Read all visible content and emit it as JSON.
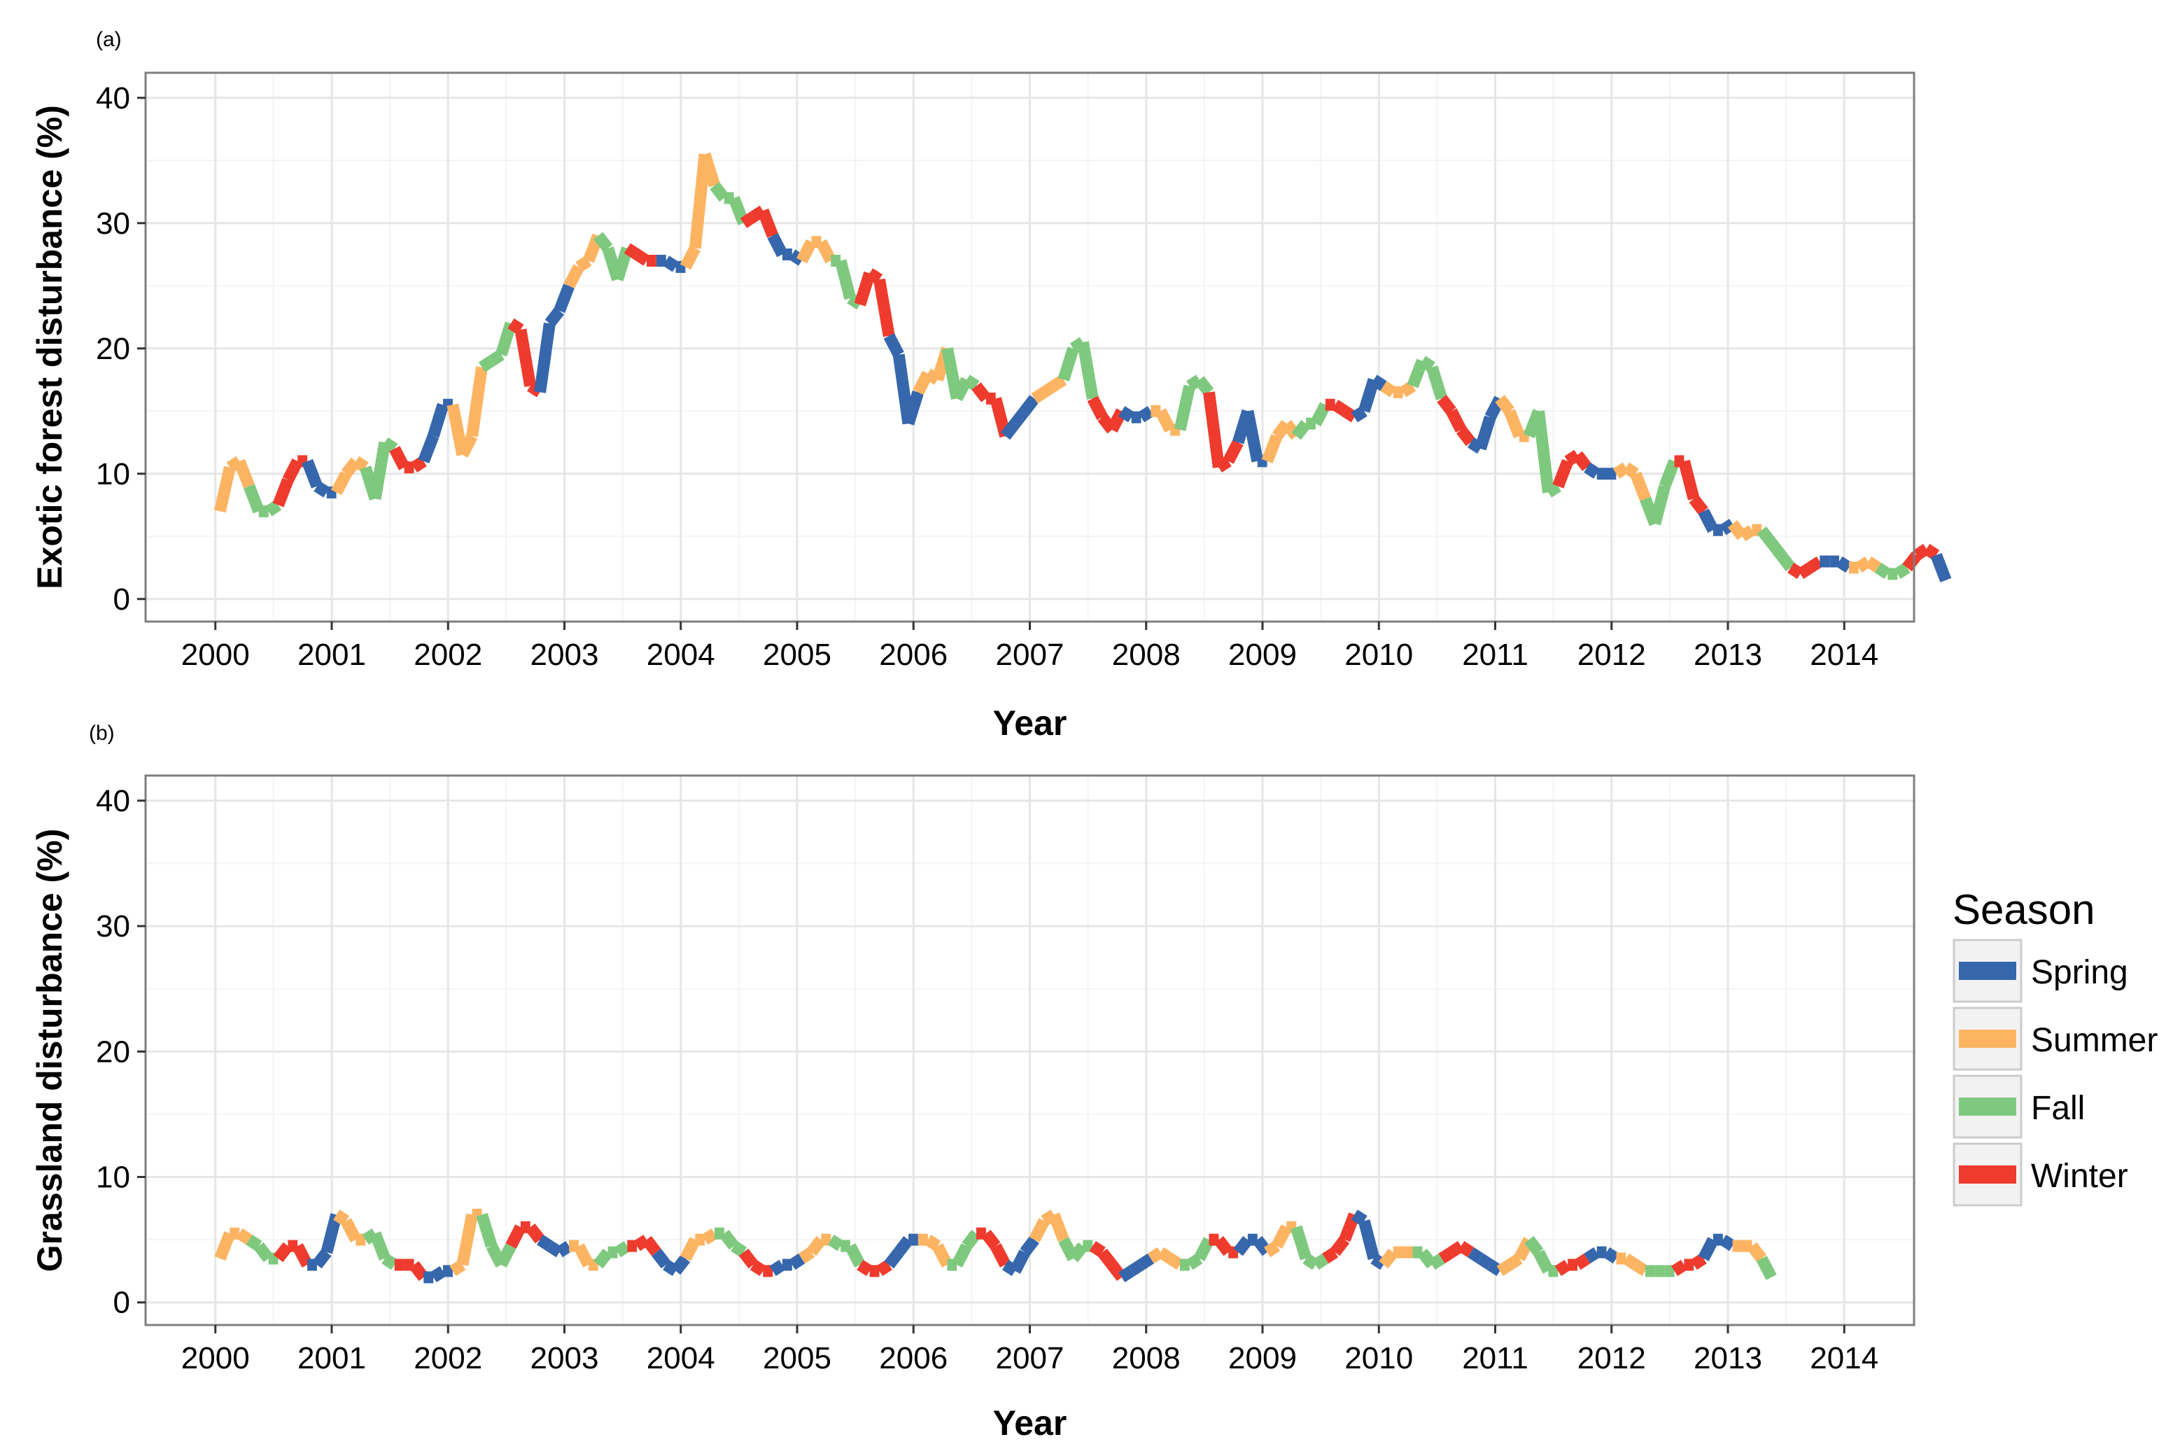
{
  "figure": {
    "legend": {
      "title": "Season",
      "position": "right",
      "entries": [
        {
          "label": "Spring",
          "color": "#3667ac"
        },
        {
          "label": "Summer",
          "color": "#fdb462"
        },
        {
          "label": "Fall",
          "color": "#7fc97f"
        },
        {
          "label": "Winter",
          "color": "#ee3b2e"
        }
      ]
    }
  },
  "chart_data": [
    {
      "panel_label": "(a)",
      "type": "line",
      "xlabel": "Year",
      "ylabel": "Exotic forest disturbance (%)",
      "xlim": [
        1999.4,
        2014.6
      ],
      "ylim": [
        -1.8,
        42
      ],
      "xticks": [
        2000,
        2001,
        2002,
        2003,
        2004,
        2005,
        2006,
        2007,
        2008,
        2009,
        2010,
        2011,
        2012,
        2013,
        2014
      ],
      "yticks": [
        0,
        10,
        20,
        30,
        40
      ],
      "grid": true,
      "season_order": [
        "Summer",
        "Fall",
        "Winter",
        "Spring"
      ],
      "x_start": 2000.04,
      "x_step": 0.0833333,
      "values": [
        7,
        10.5,
        11,
        9,
        7,
        7,
        7.5,
        9.5,
        11,
        11,
        9,
        8.5,
        8.5,
        10,
        11,
        10.5,
        8,
        12.5,
        12,
        10.5,
        10.5,
        11,
        13,
        15.5,
        15.5,
        11.5,
        13,
        18.5,
        19,
        19.5,
        22,
        21.5,
        17,
        16.5,
        22,
        23,
        25,
        26.5,
        27,
        29,
        28,
        25.5,
        28,
        27.5,
        27,
        27,
        27,
        26.5,
        26.5,
        28,
        35.5,
        33,
        32,
        32,
        30,
        30.5,
        31,
        29,
        27.5,
        27.5,
        27,
        28.5,
        28.5,
        27,
        27,
        24,
        23.5,
        26,
        25.5,
        21,
        19.5,
        14,
        16.5,
        18,
        17.5,
        20,
        16,
        17.5,
        17,
        16,
        16,
        13,
        14,
        15,
        16,
        16.5,
        17,
        17.5,
        20,
        20.5,
        16,
        14.5,
        13.5,
        15,
        14.5,
        14.5,
        15,
        15,
        13.5,
        13.5,
        17,
        17.5,
        16.5,
        10.5,
        11,
        12.5,
        15,
        11,
        11,
        13,
        14,
        13,
        14,
        14,
        15.5,
        15.5,
        15,
        14.5,
        15,
        17.5,
        17,
        16.5,
        16.5,
        17,
        19,
        18.5,
        16,
        15,
        13.5,
        12.5,
        12,
        14.5,
        16,
        15,
        13,
        13,
        15,
        8.5,
        9,
        11,
        11.5,
        10.5,
        10,
        10,
        10,
        10.5,
        10,
        8,
        6,
        9,
        11,
        11,
        8,
        7,
        5.5,
        5.5,
        6,
        5,
        5.5,
        5.5,
        4.5,
        3.5,
        2.5,
        2,
        2.5,
        3,
        3,
        3,
        2.5,
        2.5,
        3,
        2.5,
        2,
        2,
        2.5,
        3.5,
        4,
        3.5,
        1.5
      ]
    },
    {
      "panel_label": "(b)",
      "type": "line",
      "xlabel": "Year",
      "ylabel": "Grassland disturbance (%)",
      "xlim": [
        1999.4,
        2014.6
      ],
      "ylim": [
        -1.8,
        42
      ],
      "xticks": [
        2000,
        2001,
        2002,
        2003,
        2004,
        2005,
        2006,
        2007,
        2008,
        2009,
        2010,
        2011,
        2012,
        2013,
        2014
      ],
      "yticks": [
        0,
        10,
        20,
        30,
        40
      ],
      "grid": true,
      "season_order": [
        "Summer",
        "Fall",
        "Winter",
        "Spring"
      ],
      "x_start": 2000.04,
      "x_step": 0.0833333,
      "values": [
        3.5,
        5.5,
        5.5,
        5,
        4.5,
        3.5,
        3.5,
        4.5,
        4.5,
        3,
        3,
        4,
        7,
        6.5,
        5,
        5,
        5.5,
        3.5,
        3,
        3,
        3,
        2,
        2,
        2.5,
        2.5,
        3,
        7,
        7,
        4.5,
        3,
        4.5,
        6,
        6,
        5,
        4.5,
        4,
        4.5,
        4.5,
        3,
        3,
        4,
        4,
        4.5,
        4.5,
        5,
        4,
        3,
        2.5,
        3.5,
        5,
        5,
        5.5,
        5.5,
        4.5,
        4,
        3,
        2.5,
        2.5,
        3,
        3,
        3.5,
        4,
        5,
        5,
        4.5,
        4.5,
        3,
        2.5,
        2.5,
        3,
        4,
        5,
        5,
        5,
        4.5,
        3,
        3,
        4.5,
        5.5,
        5.5,
        4.5,
        3,
        2.5,
        4,
        5,
        6.5,
        7,
        5,
        3.5,
        4.5,
        4.5,
        4,
        3,
        2,
        2.5,
        3,
        3.5,
        4,
        3.5,
        3,
        3,
        3.5,
        5,
        5,
        4,
        4,
        5,
        5,
        4,
        4.5,
        6,
        6,
        3.5,
        3,
        3.5,
        4,
        5,
        7,
        6.5,
        3.5,
        3,
        4,
        4,
        4,
        4,
        3,
        3.5,
        4,
        4.5,
        4,
        3.5,
        3,
        2.5,
        3,
        3.5,
        5,
        4,
        2.5,
        2.5,
        3,
        3,
        3.5,
        4,
        4,
        3.5,
        3.5,
        3,
        2.5,
        2.5,
        2.5,
        2.5,
        3,
        3,
        3.5,
        5,
        5,
        4.5,
        4.5,
        4.5,
        3.5,
        2
      ]
    }
  ]
}
